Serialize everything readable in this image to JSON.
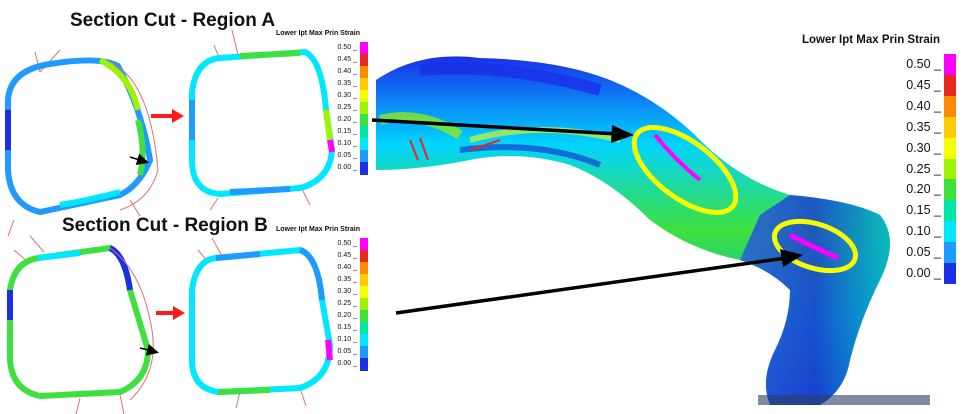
{
  "titles": {
    "region_a": "Section Cut - Region A",
    "region_b": "Section Cut - Region B"
  },
  "legend": {
    "title": "Lower Ipt Max Prin Strain",
    "ticks": [
      "0.50",
      "0.45",
      "0.40",
      "0.35",
      "0.30",
      "0.25",
      "0.20",
      "0.15",
      "0.10",
      "0.05",
      "0.00"
    ],
    "colors": [
      "#ff00ff",
      "#e8281e",
      "#ff8a00",
      "#ffcc00",
      "#f4ff00",
      "#9ff200",
      "#3de03d",
      "#00e6a8",
      "#00e8ff",
      "#1f9aff",
      "#1a2fe8"
    ]
  },
  "colors": {
    "arrow_red": "#ff1a1a",
    "arrow_black": "#000000",
    "highlight_ellipse": "#f4ff00",
    "deformed_outline": "#e07070"
  }
}
